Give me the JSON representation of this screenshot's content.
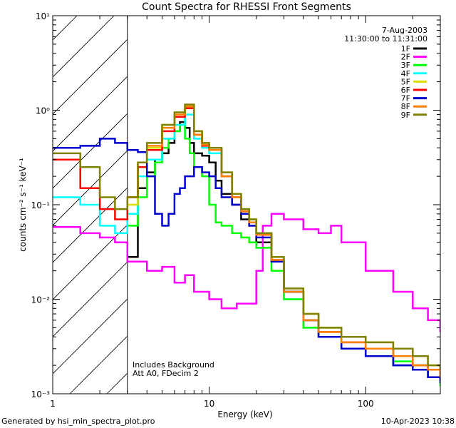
{
  "chart_data": {
    "type": "line",
    "title": "Count Spectra for RHESSI Front Segments",
    "xlabel": "Energy (keV)",
    "ylabel": "counts cm⁻² s⁻¹ keV⁻¹",
    "xscale": "log",
    "yscale": "log",
    "xlim": [
      1,
      300
    ],
    "ylim": [
      0.001,
      10
    ],
    "x_tick_labels": [
      "1",
      "10",
      "100"
    ],
    "y_tick_labels": [
      "10¹",
      "10⁰",
      "10⁻¹",
      "10⁻²",
      "10⁻³"
    ],
    "date": "7-Aug-2003",
    "time_range": "11:30:00 to 11:31:00",
    "annotations": [
      "Includes Background",
      "Att A0, FDecim 2"
    ],
    "shaded_region_keV": [
      1,
      3
    ],
    "legend_position": "top-right",
    "series": [
      {
        "name": "1F",
        "color": "#000000",
        "points": [
          [
            3,
            0.028
          ],
          [
            3.5,
            0.15
          ],
          [
            4,
            0.22
          ],
          [
            4.5,
            0.3
          ],
          [
            5,
            0.35
          ],
          [
            5.5,
            0.45
          ],
          [
            6,
            0.6
          ],
          [
            6.5,
            0.75
          ],
          [
            7,
            0.65
          ],
          [
            7.5,
            0.45
          ],
          [
            8,
            0.35
          ],
          [
            9,
            0.33
          ],
          [
            10,
            0.28
          ],
          [
            11,
            0.18
          ],
          [
            12,
            0.13
          ],
          [
            14,
            0.1
          ],
          [
            16,
            0.07
          ],
          [
            18,
            0.06
          ],
          [
            20,
            0.04
          ],
          [
            25,
            0.025
          ],
          [
            30,
            0.012
          ],
          [
            40,
            0.006
          ],
          [
            50,
            0.004
          ],
          [
            70,
            0.003
          ],
          [
            100,
            0.0025
          ],
          [
            150,
            0.002
          ],
          [
            200,
            0.0018
          ],
          [
            250,
            0.0015
          ],
          [
            300,
            0.0013
          ]
        ]
      },
      {
        "name": "2F",
        "color": "#ff00ff",
        "points": [
          [
            1,
            0.058
          ],
          [
            1.5,
            0.05
          ],
          [
            2,
            0.045
          ],
          [
            2.5,
            0.04
          ],
          [
            3,
            0.025
          ],
          [
            4,
            0.02
          ],
          [
            5,
            0.022
          ],
          [
            6,
            0.015
          ],
          [
            7,
            0.018
          ],
          [
            8,
            0.012
          ],
          [
            10,
            0.01
          ],
          [
            12,
            0.008
          ],
          [
            15,
            0.009
          ],
          [
            20,
            0.02
          ],
          [
            22,
            0.06
          ],
          [
            25,
            0.08
          ],
          [
            30,
            0.07
          ],
          [
            40,
            0.055
          ],
          [
            50,
            0.05
          ],
          [
            60,
            0.06
          ],
          [
            70,
            0.04
          ],
          [
            100,
            0.02
          ],
          [
            150,
            0.012
          ],
          [
            200,
            0.008
          ],
          [
            250,
            0.006
          ],
          [
            300,
            0.0045
          ]
        ]
      },
      {
        "name": "3F",
        "color": "#00ff00",
        "points": [
          [
            3,
            0.06
          ],
          [
            3.5,
            0.12
          ],
          [
            4,
            0.2
          ],
          [
            4.5,
            0.28
          ],
          [
            5,
            0.4
          ],
          [
            5.5,
            0.5
          ],
          [
            6,
            0.6
          ],
          [
            6.5,
            0.7
          ],
          [
            7,
            0.5
          ],
          [
            7.5,
            0.35
          ],
          [
            8,
            0.25
          ],
          [
            9,
            0.2
          ],
          [
            10,
            0.1
          ],
          [
            11,
            0.065
          ],
          [
            12,
            0.06
          ],
          [
            14,
            0.05
          ],
          [
            16,
            0.045
          ],
          [
            18,
            0.04
          ],
          [
            20,
            0.035
          ],
          [
            25,
            0.02
          ],
          [
            30,
            0.01
          ],
          [
            40,
            0.005
          ],
          [
            50,
            0.004
          ],
          [
            70,
            0.003
          ],
          [
            100,
            0.003
          ],
          [
            150,
            0.0022
          ],
          [
            200,
            0.002
          ],
          [
            250,
            0.0015
          ],
          [
            300,
            0.0012
          ]
        ]
      },
      {
        "name": "4F",
        "color": "#00ffff",
        "points": [
          [
            1,
            0.12
          ],
          [
            1.5,
            0.1
          ],
          [
            2,
            0.06
          ],
          [
            2.5,
            0.05
          ],
          [
            3,
            0.08
          ],
          [
            3.5,
            0.2
          ],
          [
            4,
            0.3
          ],
          [
            5,
            0.5
          ],
          [
            6,
            0.7
          ],
          [
            7,
            0.9
          ],
          [
            8,
            0.5
          ],
          [
            9,
            0.4
          ],
          [
            10,
            0.35
          ],
          [
            12,
            0.2
          ],
          [
            14,
            0.12
          ],
          [
            16,
            0.09
          ],
          [
            18,
            0.07
          ],
          [
            20,
            0.05
          ],
          [
            25,
            0.025
          ],
          [
            30,
            0.012
          ],
          [
            40,
            0.006
          ],
          [
            50,
            0.005
          ],
          [
            70,
            0.004
          ],
          [
            100,
            0.003
          ],
          [
            150,
            0.0025
          ],
          [
            200,
            0.002
          ],
          [
            250,
            0.0018
          ],
          [
            300,
            0.0015
          ]
        ]
      },
      {
        "name": "5F",
        "color": "#dddd00",
        "points": [
          [
            3,
            0.1
          ],
          [
            3.5,
            0.25
          ],
          [
            4,
            0.4
          ],
          [
            5,
            0.7
          ],
          [
            6,
            0.9
          ],
          [
            7,
            1.1
          ],
          [
            8,
            0.6
          ],
          [
            9,
            0.45
          ],
          [
            10,
            0.4
          ],
          [
            12,
            0.22
          ],
          [
            14,
            0.13
          ],
          [
            16,
            0.09
          ],
          [
            18,
            0.07
          ],
          [
            20,
            0.05
          ],
          [
            25,
            0.028
          ],
          [
            30,
            0.013
          ],
          [
            40,
            0.007
          ],
          [
            50,
            0.005
          ],
          [
            70,
            0.004
          ],
          [
            100,
            0.0035
          ],
          [
            150,
            0.003
          ],
          [
            200,
            0.0025
          ],
          [
            250,
            0.002
          ],
          [
            300,
            0.0018
          ]
        ]
      },
      {
        "name": "6F",
        "color": "#ff0000",
        "points": [
          [
            1,
            0.3
          ],
          [
            1.5,
            0.15
          ],
          [
            2,
            0.09
          ],
          [
            2.5,
            0.07
          ],
          [
            3,
            0.12
          ],
          [
            3.5,
            0.25
          ],
          [
            4,
            0.38
          ],
          [
            5,
            0.6
          ],
          [
            6,
            0.85
          ],
          [
            7,
            1.05
          ],
          [
            8,
            0.55
          ],
          [
            9,
            0.42
          ],
          [
            10,
            0.38
          ],
          [
            12,
            0.2
          ],
          [
            14,
            0.12
          ],
          [
            16,
            0.085
          ],
          [
            18,
            0.065
          ],
          [
            20,
            0.048
          ],
          [
            25,
            0.026
          ],
          [
            30,
            0.012
          ],
          [
            40,
            0.006
          ],
          [
            50,
            0.0045
          ],
          [
            70,
            0.0035
          ],
          [
            100,
            0.003
          ],
          [
            150,
            0.0025
          ],
          [
            200,
            0.002
          ],
          [
            250,
            0.0018
          ],
          [
            300,
            0.0015
          ]
        ]
      },
      {
        "name": "7F",
        "color": "#0000cc",
        "points": [
          [
            1,
            0.4
          ],
          [
            1.5,
            0.42
          ],
          [
            2,
            0.5
          ],
          [
            2.5,
            0.45
          ],
          [
            3,
            0.38
          ],
          [
            3.5,
            0.36
          ],
          [
            4,
            0.2
          ],
          [
            4.5,
            0.08
          ],
          [
            5,
            0.06
          ],
          [
            5.5,
            0.08
          ],
          [
            6,
            0.13
          ],
          [
            6.5,
            0.15
          ],
          [
            7,
            0.2
          ],
          [
            8,
            0.25
          ],
          [
            9,
            0.22
          ],
          [
            10,
            0.2
          ],
          [
            11,
            0.15
          ],
          [
            12,
            0.12
          ],
          [
            14,
            0.1
          ],
          [
            16,
            0.08
          ],
          [
            18,
            0.06
          ],
          [
            20,
            0.045
          ],
          [
            25,
            0.025
          ],
          [
            30,
            0.012
          ],
          [
            40,
            0.006
          ],
          [
            50,
            0.004
          ],
          [
            70,
            0.003
          ],
          [
            100,
            0.0025
          ],
          [
            150,
            0.002
          ],
          [
            200,
            0.0018
          ],
          [
            250,
            0.0015
          ],
          [
            300,
            0.0013
          ]
        ]
      },
      {
        "name": "8F",
        "color": "#ff8000",
        "points": [
          [
            3,
            0.12
          ],
          [
            3.5,
            0.28
          ],
          [
            4,
            0.42
          ],
          [
            5,
            0.65
          ],
          [
            6,
            0.9
          ],
          [
            7,
            1.1
          ],
          [
            8,
            0.55
          ],
          [
            9,
            0.43
          ],
          [
            10,
            0.38
          ],
          [
            12,
            0.2
          ],
          [
            14,
            0.12
          ],
          [
            16,
            0.085
          ],
          [
            18,
            0.065
          ],
          [
            20,
            0.048
          ],
          [
            25,
            0.026
          ],
          [
            30,
            0.012
          ],
          [
            40,
            0.006
          ],
          [
            50,
            0.0045
          ],
          [
            70,
            0.0035
          ],
          [
            100,
            0.003
          ],
          [
            150,
            0.0025
          ],
          [
            200,
            0.002
          ],
          [
            250,
            0.0018
          ],
          [
            300,
            0.0015
          ]
        ]
      },
      {
        "name": "9F",
        "color": "#808000",
        "points": [
          [
            1,
            0.35
          ],
          [
            1.5,
            0.25
          ],
          [
            2,
            0.12
          ],
          [
            2.5,
            0.09
          ],
          [
            3,
            0.12
          ],
          [
            3.5,
            0.28
          ],
          [
            4,
            0.45
          ],
          [
            5,
            0.7
          ],
          [
            6,
            0.95
          ],
          [
            7,
            1.15
          ],
          [
            8,
            0.6
          ],
          [
            9,
            0.45
          ],
          [
            10,
            0.4
          ],
          [
            12,
            0.22
          ],
          [
            14,
            0.13
          ],
          [
            16,
            0.09
          ],
          [
            18,
            0.07
          ],
          [
            20,
            0.05
          ],
          [
            25,
            0.028
          ],
          [
            30,
            0.013
          ],
          [
            40,
            0.007
          ],
          [
            50,
            0.005
          ],
          [
            70,
            0.004
          ],
          [
            100,
            0.0035
          ],
          [
            150,
            0.003
          ],
          [
            200,
            0.0025
          ],
          [
            250,
            0.002
          ],
          [
            300,
            0.0018
          ]
        ]
      }
    ]
  },
  "footer": {
    "left": "Generated by hsi_min_spectra_plot.pro",
    "right": "10-Apr-2023 10:38"
  }
}
